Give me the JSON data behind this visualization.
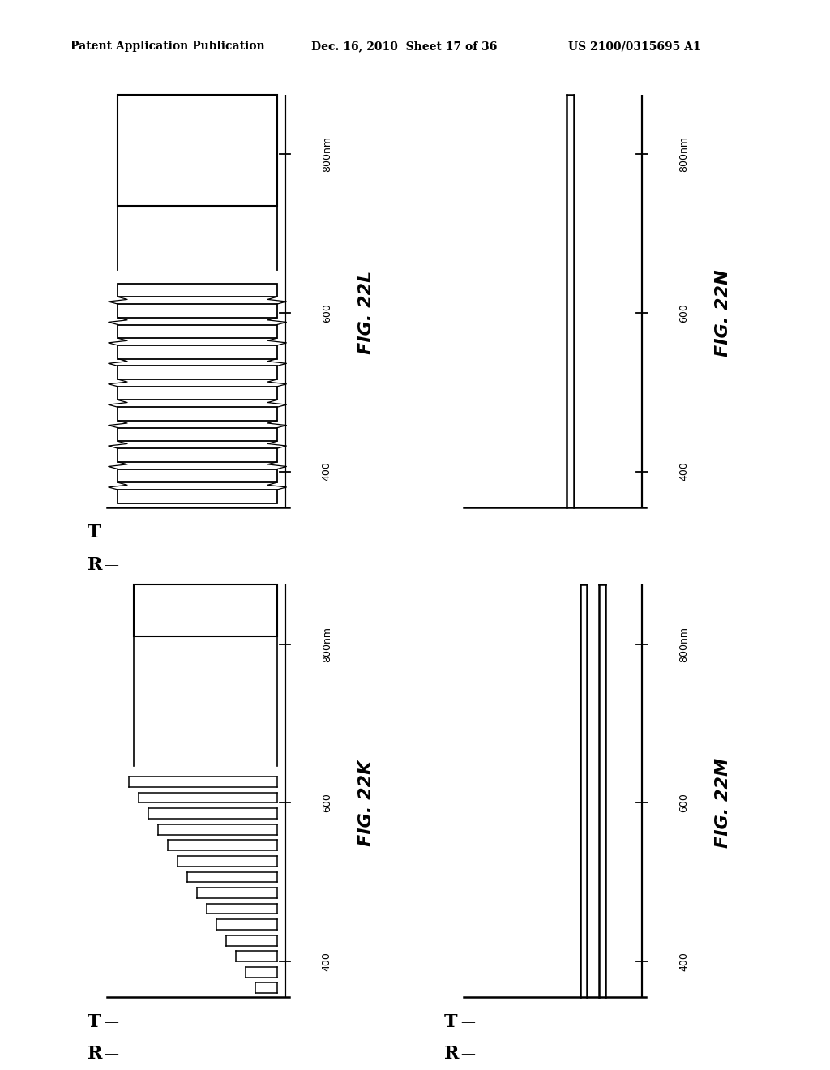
{
  "header_left": "Patent Application Publication",
  "header_mid": "Dec. 16, 2010  Sheet 17 of 36",
  "header_right": "US 2100/0315695 A1",
  "bg": "#ffffff",
  "tick_values": [
    400,
    600,
    800
  ],
  "fig_22L": "FIG. 22L",
  "fig_22N": "FIG. 22N",
  "fig_22K": "FIG. 22K",
  "fig_22M": "FIG. 22M",
  "n_fringes_L": 11,
  "n_fringes_K": 14
}
